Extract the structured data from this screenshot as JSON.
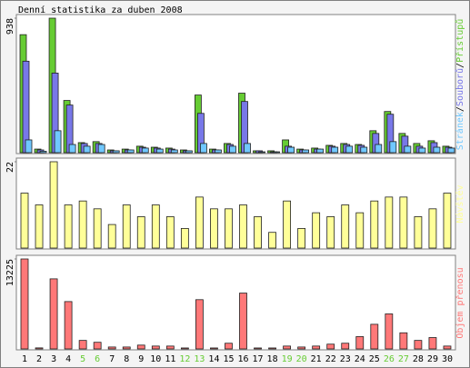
{
  "title": "Denní statistika za duben 2008",
  "legend_separator": "/",
  "chart_data": [
    {
      "type": "bar",
      "ylim": [
        0,
        938
      ],
      "yticks": [
        938
      ],
      "series": [
        {
          "name": "Přístupů",
          "color": "#66cc33",
          "values": [
            823,
            25,
            938,
            364,
            70,
            77,
            19,
            25,
            45,
            38,
            32,
            19,
            402,
            25,
            64,
            415,
            13,
            13,
            89,
            25,
            32,
            51,
            64,
            57,
            153,
            287,
            134,
            64,
            83,
            45
          ]
        },
        {
          "name": "Souborů",
          "color": "#7878e8",
          "values": [
            638,
            19,
            555,
            332,
            64,
            64,
            13,
            19,
            38,
            32,
            25,
            13,
            274,
            19,
            57,
            357,
            13,
            6,
            45,
            19,
            25,
            45,
            57,
            51,
            134,
            268,
            115,
            45,
            70,
            38
          ]
        },
        {
          "name": "Stránek",
          "color": "#70c8ff",
          "values": [
            89,
            10,
            153,
            57,
            45,
            57,
            13,
            19,
            32,
            25,
            19,
            13,
            64,
            19,
            45,
            64,
            6,
            6,
            38,
            19,
            25,
            38,
            45,
            38,
            57,
            77,
            45,
            32,
            38,
            32
          ]
        }
      ]
    },
    {
      "type": "bar",
      "ylim": [
        0,
        22
      ],
      "yticks": [
        22
      ],
      "series": [
        {
          "name": "Návštěv",
          "color": "#ffff99",
          "values": [
            14,
            11,
            22,
            11,
            12,
            10,
            6,
            11,
            8,
            11,
            8,
            5,
            13,
            10,
            10,
            11,
            8,
            4,
            12,
            5,
            9,
            8,
            11,
            9,
            12,
            13,
            13,
            8,
            10,
            14
          ]
        }
      ]
    },
    {
      "type": "bar",
      "ylim": [
        0,
        13225
      ],
      "yticks": [
        13225
      ],
      "series": [
        {
          "name": "Objem přenosu",
          "color": "#ff7878",
          "values": [
            13225,
            150,
            10300,
            6960,
            1250,
            975,
            280,
            280,
            560,
            420,
            420,
            140,
            7240,
            140,
            835,
            8210,
            140,
            140,
            420,
            280,
            420,
            700,
            835,
            1810,
            3620,
            5150,
            2370,
            1250,
            1670,
            420
          ]
        }
      ],
      "categories": [
        "1",
        "2",
        "3",
        "4",
        "5",
        "6",
        "7",
        "8",
        "9",
        "10",
        "11",
        "12",
        "13",
        "14",
        "15",
        "16",
        "17",
        "18",
        "19",
        "20",
        "21",
        "22",
        "23",
        "24",
        "25",
        "26",
        "27",
        "28",
        "29",
        "30"
      ],
      "category_colors": [
        "#000000",
        "#000000",
        "#000000",
        "#000000",
        "#66cc33",
        "#66cc33",
        "#000000",
        "#000000",
        "#000000",
        "#000000",
        "#000000",
        "#66cc33",
        "#66cc33",
        "#000000",
        "#000000",
        "#000000",
        "#000000",
        "#000000",
        "#66cc33",
        "#66cc33",
        "#000000",
        "#000000",
        "#000000",
        "#000000",
        "#000000",
        "#66cc33",
        "#66cc33",
        "#000000",
        "#000000",
        "#000000"
      ]
    }
  ]
}
